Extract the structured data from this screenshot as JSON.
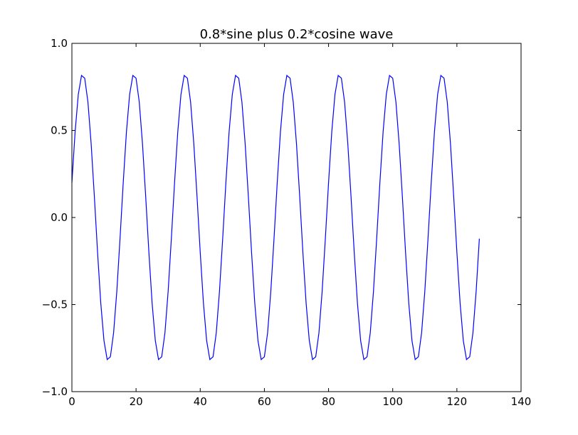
{
  "chart_data": {
    "type": "line",
    "title": "0.8*sine plus 0.2*cosine wave",
    "xlabel": "",
    "ylabel": "",
    "xlim": [
      0,
      140
    ],
    "ylim": [
      -1.0,
      1.0
    ],
    "x_ticks": [
      0,
      20,
      40,
      60,
      80,
      100,
      120,
      140
    ],
    "x_tick_labels": [
      "0",
      "20",
      "40",
      "60",
      "80",
      "100",
      "120",
      "140"
    ],
    "y_ticks": [
      -1.0,
      -0.5,
      0.0,
      0.5,
      1.0
    ],
    "y_tick_labels": [
      "−1.0",
      "−0.5",
      "0.0",
      "0.5",
      "1.0"
    ],
    "grid": false,
    "legend": "none",
    "series": [
      {
        "color": "#0000ff",
        "period": 16,
        "x_start": 0,
        "x_end": 127,
        "formula": "0.8*sin(2*pi*x/16) + 0.2*cos(2*pi*x/16)",
        "y_peak": 0.82,
        "y_trough": -0.82,
        "y_first": 0.2,
        "y_last": -0.12
      }
    ]
  }
}
